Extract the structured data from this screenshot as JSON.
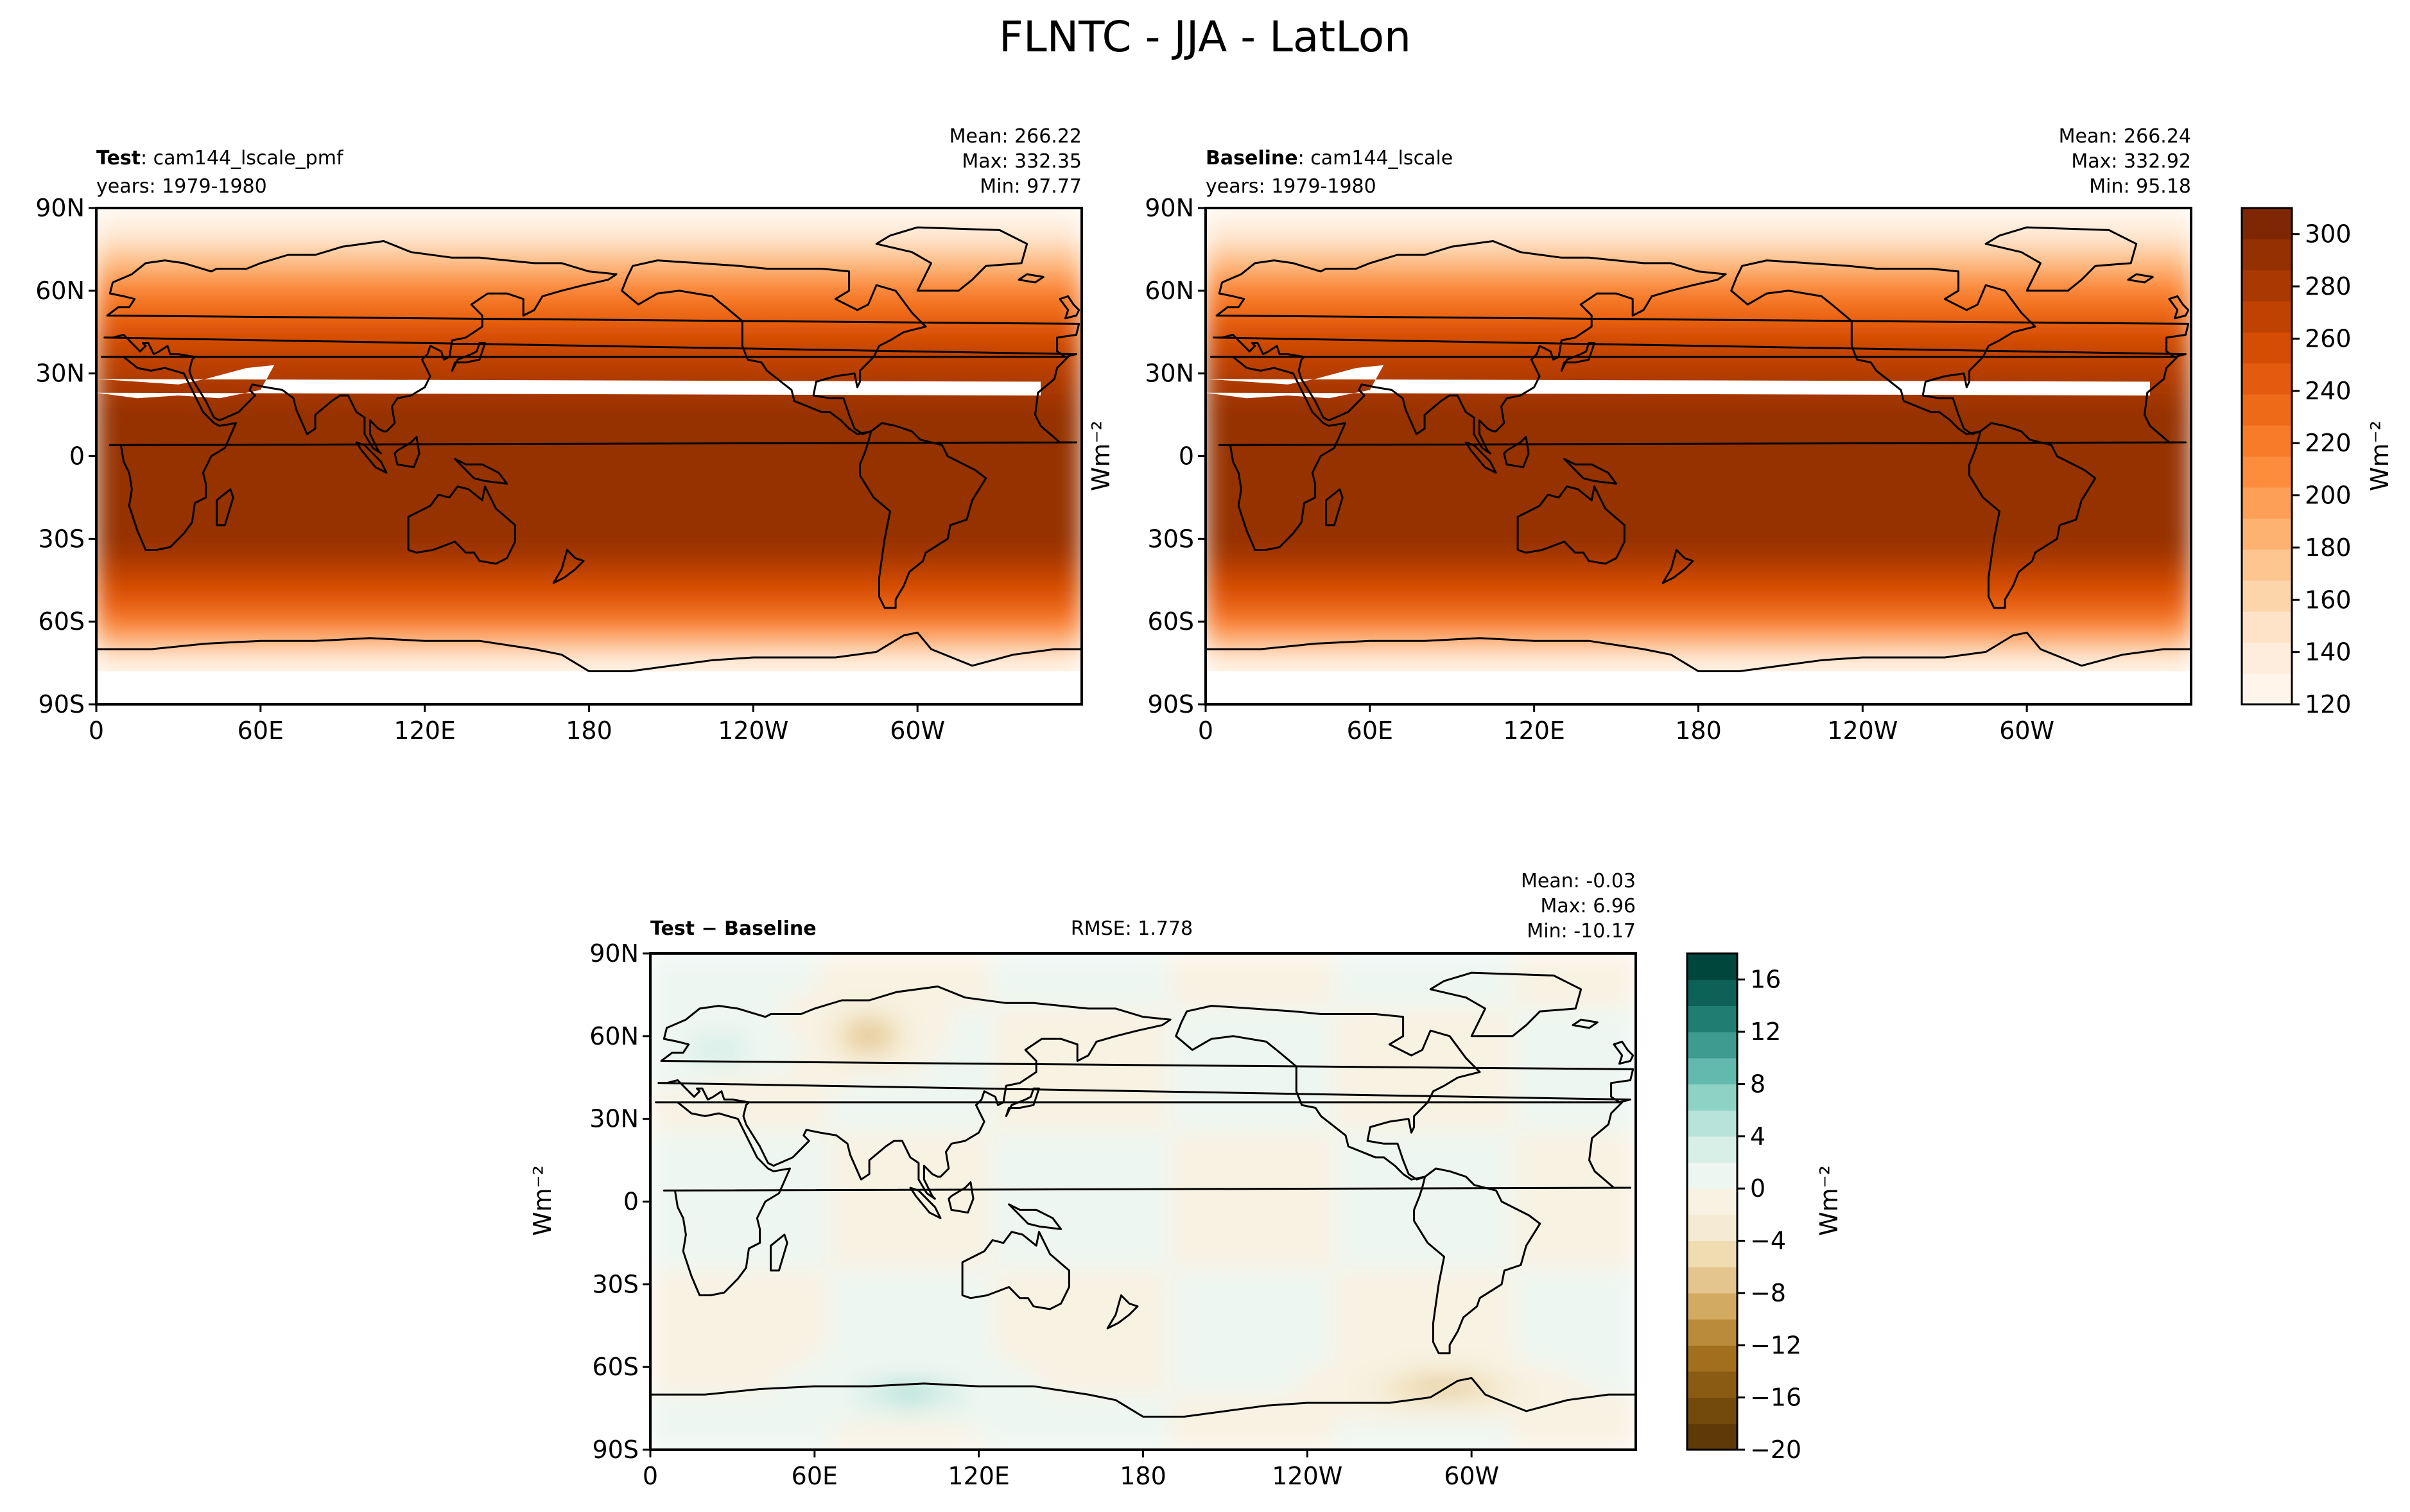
{
  "figure": {
    "title": "FLNTC - JJA - LatLon"
  },
  "colors": {
    "frame": "#000000",
    "land_outline": "#000000",
    "missing": "#ffffff"
  },
  "lat_ticks": [
    "90N",
    "60N",
    "30N",
    "0",
    "30S",
    "60S",
    "90S"
  ],
  "lon_ticks": [
    "0",
    "60E",
    "120E",
    "180",
    "120W",
    "60W"
  ],
  "panels": [
    {
      "id": "test",
      "label_bold": "Test",
      "label_rest": ": cam144_lscale_pmf",
      "years": "years: 1979-1980",
      "stats": [
        "Mean: 266.22",
        "Max: 332.35",
        "Min: 97.77"
      ],
      "rmse": "",
      "ylabel": "",
      "colormap": "oranges"
    },
    {
      "id": "baseline",
      "label_bold": "Baseline",
      "label_rest": ": cam144_lscale",
      "years": "years: 1979-1980",
      "stats": [
        "Mean: 266.24",
        "Max: 332.92",
        "Min: 95.18"
      ],
      "rmse": "",
      "ylabel": "Wm⁻²",
      "colormap": "oranges"
    },
    {
      "id": "diff",
      "label_bold": "Test − Baseline",
      "label_rest": "",
      "years": "",
      "stats": [
        "Mean: -0.03",
        "Max:  6.96",
        "Min: -10.17"
      ],
      "rmse": "RMSE: 1.778",
      "ylabel": "Wm⁻²",
      "colormap": "brown-teal"
    }
  ],
  "colorbars": [
    {
      "id": "cbar-main",
      "label": "Wm⁻²",
      "min": 120,
      "max": 310,
      "ticks": [
        "120",
        "140",
        "160",
        "180",
        "200",
        "220",
        "240",
        "260",
        "280",
        "300"
      ],
      "tick_values": [
        120,
        140,
        160,
        180,
        200,
        220,
        240,
        260,
        280,
        300
      ],
      "colors": [
        "#fff5eb",
        "#feeddc",
        "#fee3c8",
        "#fdd5ab",
        "#fdc590",
        "#fdb271",
        "#fd9f56",
        "#fd8c3c",
        "#f77b28",
        "#ef6a18",
        "#e45a0e",
        "#d54c04",
        "#c04203",
        "#aa3803",
        "#953003",
        "#7f2704"
      ]
    },
    {
      "id": "cbar-diff",
      "label": "Wm⁻²",
      "min": -20,
      "max": 18,
      "ticks": [
        "−20",
        "−16",
        "−12",
        "−8",
        "−4",
        "0",
        "4",
        "8",
        "12",
        "16"
      ],
      "tick_values": [
        -20,
        -16,
        -12,
        -8,
        -4,
        0,
        4,
        8,
        12,
        16
      ],
      "colors": [
        "#5e3a09",
        "#744a0c",
        "#8a5b12",
        "#a26f1e",
        "#bb8b3c",
        "#d2aa62",
        "#e4c58d",
        "#efdcb0",
        "#f5ebd2",
        "#f8f2e2",
        "#eef6f2",
        "#d8efe8",
        "#b7e3da",
        "#8ed2c6",
        "#63b9ad",
        "#3e9b90",
        "#1f7d72",
        "#0d6157",
        "#01463c"
      ]
    }
  ]
}
